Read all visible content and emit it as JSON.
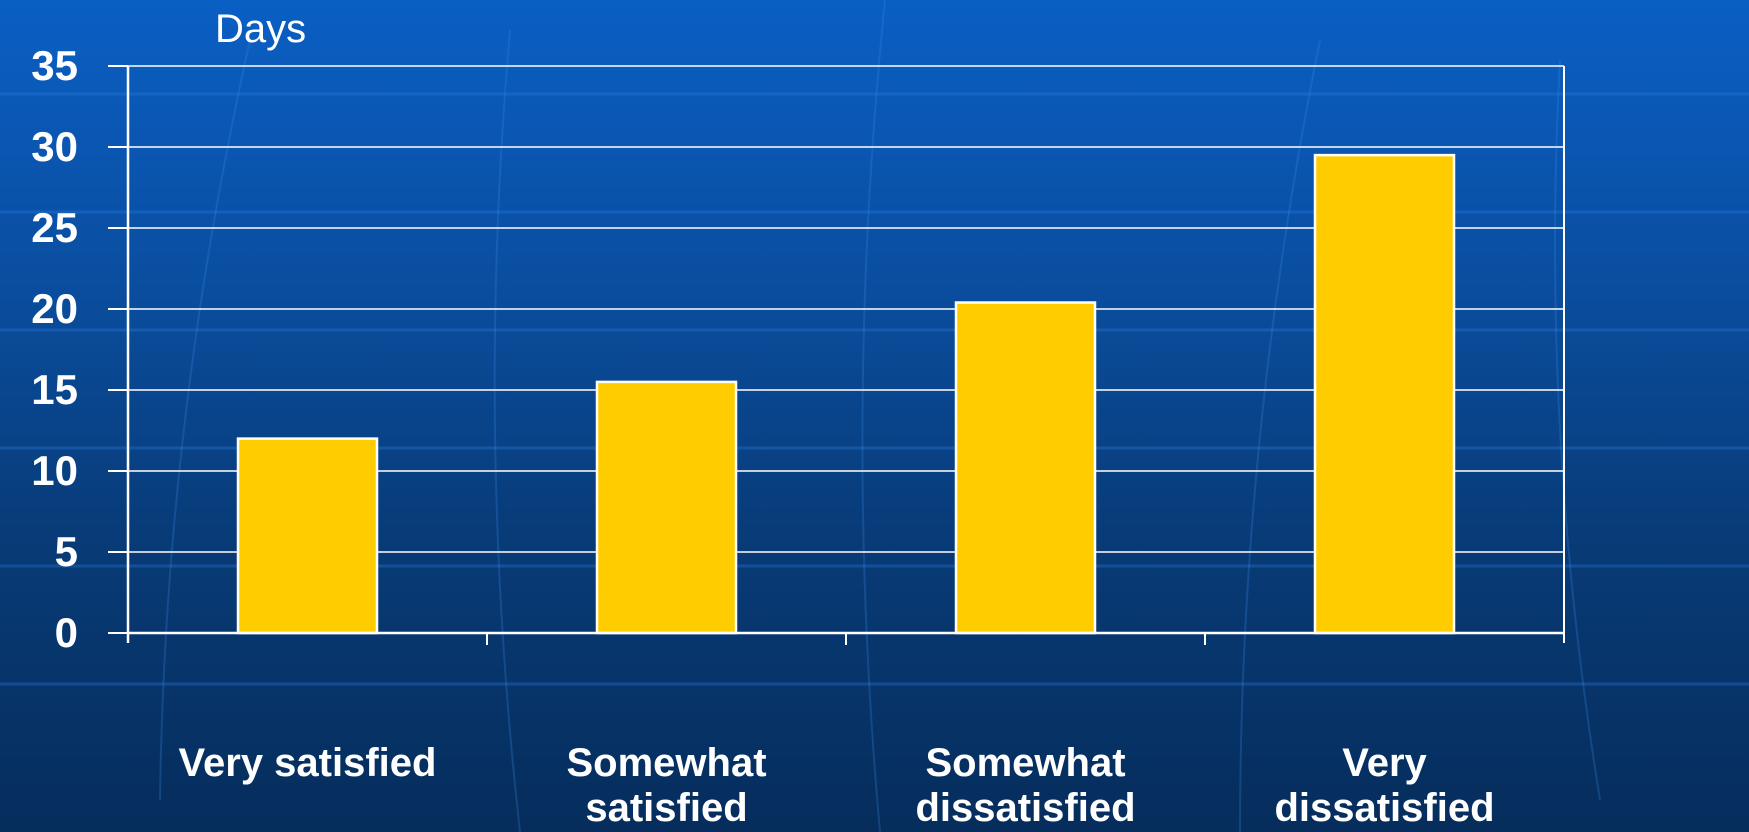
{
  "chart_data": {
    "type": "bar",
    "ylabel": "Days",
    "categories": [
      "Very satisfied",
      "Somewhat satisfied",
      "Somewhat dissatisfied",
      "Very dissatisfied"
    ],
    "category_lines": [
      [
        "Very satisfied"
      ],
      [
        "Somewhat",
        "satisfied"
      ],
      [
        "Somewhat",
        "dissatisfied"
      ],
      [
        "Very",
        "dissatisfied"
      ]
    ],
    "values": [
      12,
      15.5,
      20.4,
      29.5
    ],
    "ylim": [
      0,
      35
    ],
    "yticks": [
      "0",
      "5",
      "10",
      "15",
      "20",
      "25",
      "30",
      "35"
    ],
    "grid": true,
    "bar_color": "#ffcc00",
    "bar_edge_color": "#ffffff",
    "axis_color": "#ffffff",
    "text_color": "#ffffff"
  }
}
